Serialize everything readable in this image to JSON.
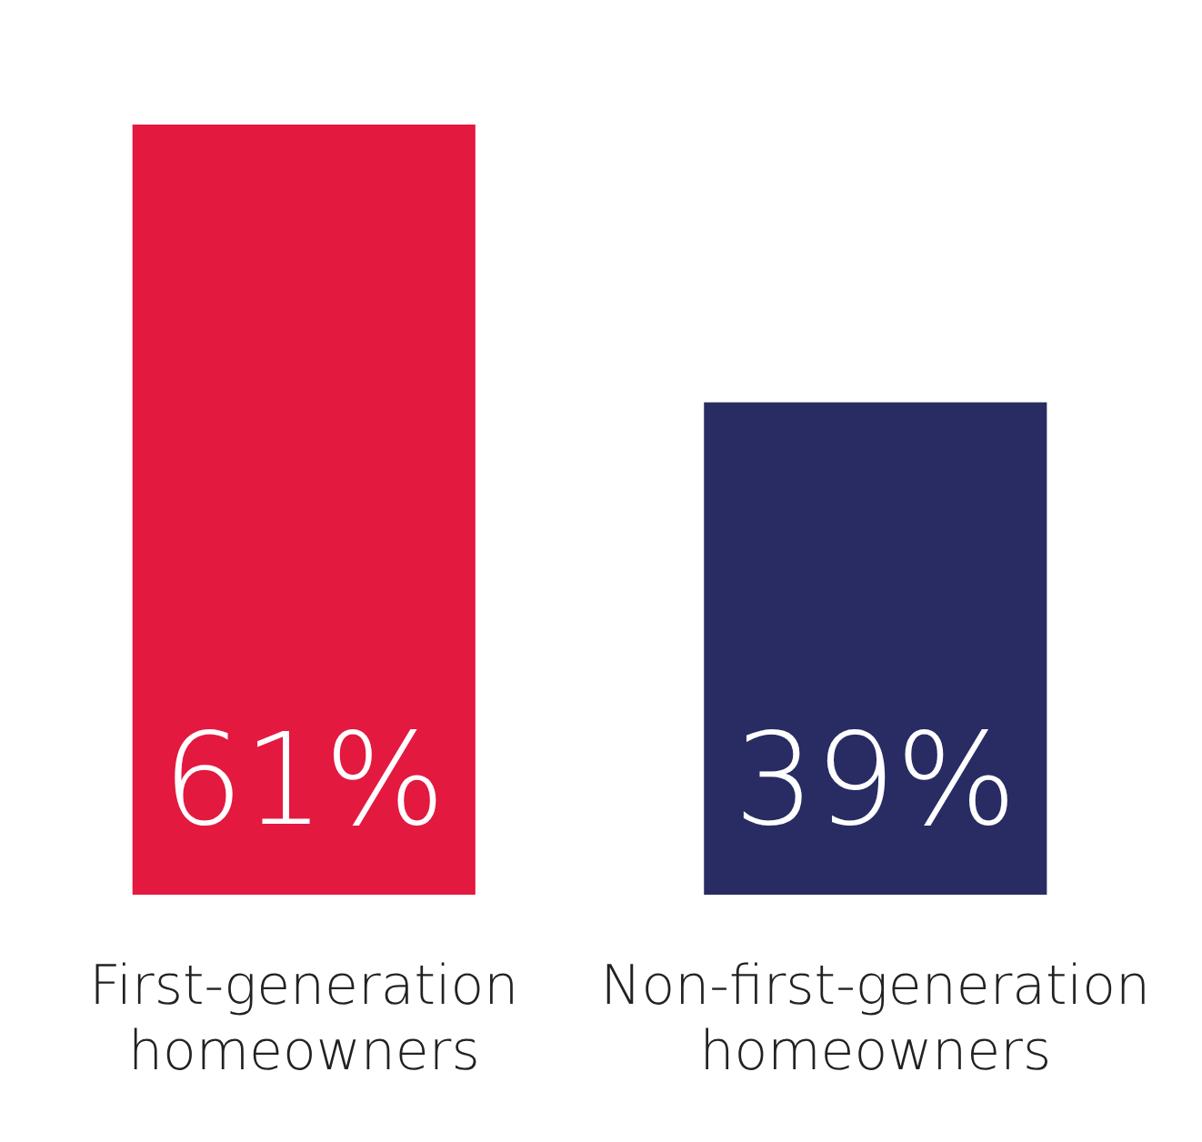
{
  "chart_data": {
    "type": "bar",
    "categories": [
      "First-generation homeowners",
      "Non-first-generation homeowners"
    ],
    "values": [
      61,
      39
    ],
    "colors": [
      "#e31940",
      "#282c63"
    ],
    "value_labels": [
      "61%",
      "39%"
    ],
    "legend": false,
    "tick_labels": "x"
  }
}
